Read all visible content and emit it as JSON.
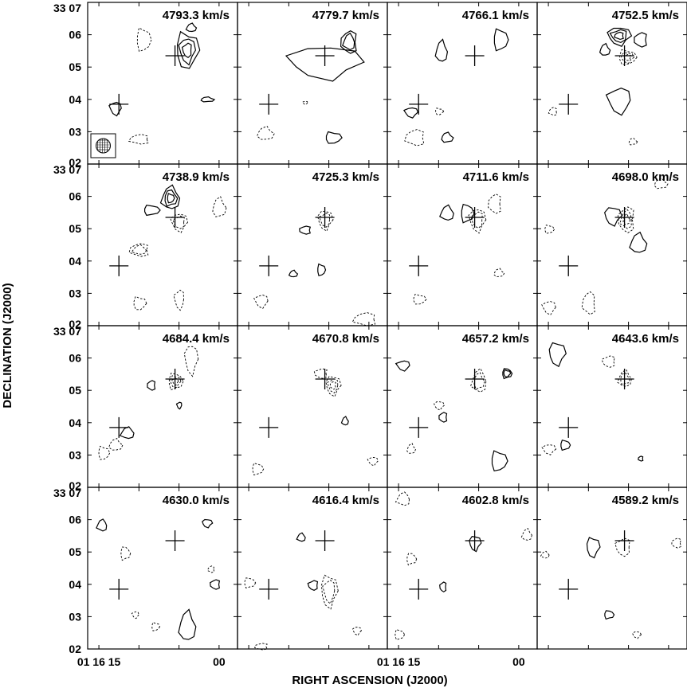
{
  "chart_data": {
    "type": "contour",
    "xlabel": "RIGHT ASCENSION (J2000)",
    "ylabel": "DECLINATION (J2000)",
    "layout": {
      "rows": 4,
      "cols": 4
    },
    "x_tick_labels": [
      "01 16 15",
      "00"
    ],
    "y_tick_labels": [
      "33 07",
      "06",
      "05",
      "04",
      "03",
      "02"
    ],
    "panels": [
      {
        "velocity": "4793.3 km/s",
        "beam_shown": true
      },
      {
        "velocity": "4779.7 km/s"
      },
      {
        "velocity": "4766.1 km/s"
      },
      {
        "velocity": "4752.5 km/s"
      },
      {
        "velocity": "4738.9 km/s"
      },
      {
        "velocity": "4725.3 km/s"
      },
      {
        "velocity": "4711.6 km/s"
      },
      {
        "velocity": "4698.0 km/s"
      },
      {
        "velocity": "4684.4 km/s"
      },
      {
        "velocity": "4670.8 km/s"
      },
      {
        "velocity": "4657.2 km/s"
      },
      {
        "velocity": "4643.6 km/s"
      },
      {
        "velocity": "4630.0 km/s"
      },
      {
        "velocity": "4616.4 km/s"
      },
      {
        "velocity": "4602.8 km/s"
      },
      {
        "velocity": "4589.2 km/s"
      }
    ],
    "markers": [
      {
        "name": "cross",
        "ra": "01 16 12.5",
        "dec": "33 03.85"
      },
      {
        "name": "cross",
        "ra": "01 16 05.5",
        "dec": "33 05.35"
      }
    ],
    "contours": "solid = positive, dashed = negative"
  }
}
